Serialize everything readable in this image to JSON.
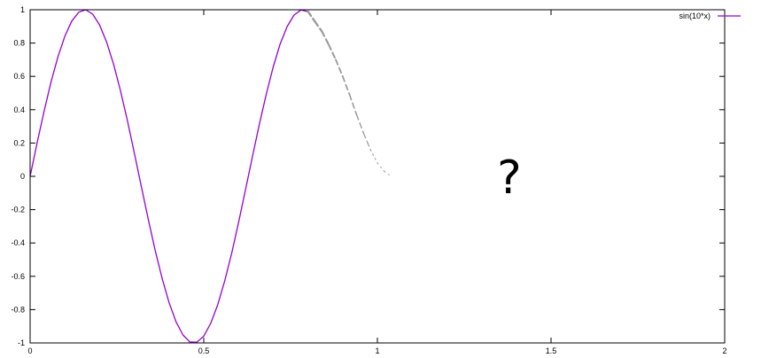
{
  "chart_data": {
    "type": "line",
    "title": "",
    "xlabel": "",
    "ylabel": "",
    "xlim": [
      0,
      2
    ],
    "ylim": [
      -1,
      1
    ],
    "x_ticks": [
      {
        "value": 0,
        "label": "0"
      },
      {
        "value": 0.5,
        "label": "0.5"
      },
      {
        "value": 1,
        "label": "1"
      },
      {
        "value": 1.5,
        "label": "1.5"
      },
      {
        "value": 2,
        "label": "2"
      }
    ],
    "y_ticks": [
      {
        "value": 1,
        "label": "1"
      },
      {
        "value": 0.8,
        "label": "0.8"
      },
      {
        "value": 0.6,
        "label": "0.6"
      },
      {
        "value": 0.4,
        "label": "0.4"
      },
      {
        "value": 0.2,
        "label": "0.2"
      },
      {
        "value": 0,
        "label": "0"
      },
      {
        "value": -0.2,
        "label": "-0.2"
      },
      {
        "value": -0.4,
        "label": "-0.4"
      },
      {
        "value": -0.6,
        "label": "-0.6"
      },
      {
        "value": -0.8,
        "label": "-0.8"
      },
      {
        "value": -1,
        "label": "-1"
      }
    ],
    "grid": false,
    "legend_position": "top-right",
    "series": [
      {
        "name": "sin(10*x)",
        "color": "#9400d3",
        "style": "solid",
        "x": [
          0,
          0.02,
          0.04,
          0.06,
          0.08,
          0.1,
          0.12,
          0.14,
          0.16,
          0.18,
          0.2,
          0.22,
          0.24,
          0.26,
          0.28,
          0.3,
          0.32,
          0.34,
          0.36,
          0.38,
          0.4,
          0.42,
          0.44,
          0.46,
          0.48,
          0.5,
          0.52,
          0.54,
          0.56,
          0.58,
          0.6,
          0.62,
          0.64,
          0.66,
          0.68,
          0.7,
          0.72,
          0.74,
          0.76,
          0.78,
          0.8
        ],
        "y": [
          0,
          0.199,
          0.389,
          0.565,
          0.717,
          0.841,
          0.932,
          0.985,
          1.0,
          0.974,
          0.909,
          0.808,
          0.675,
          0.516,
          0.335,
          0.141,
          -0.058,
          -0.256,
          -0.443,
          -0.612,
          -0.757,
          -0.872,
          -0.952,
          -0.994,
          -0.996,
          -0.959,
          -0.883,
          -0.772,
          -0.631,
          -0.465,
          -0.279,
          -0.083,
          0.117,
          0.311,
          0.494,
          0.657,
          0.794,
          0.899,
          0.968,
          0.999,
          0.989
        ]
      },
      {
        "name": "",
        "color": "#999999",
        "style": "dashed-fading",
        "x": [
          0.8,
          0.82,
          0.84,
          0.86,
          0.88,
          0.9,
          0.92,
          0.94,
          0.96,
          0.98,
          1.0,
          1.02,
          1.04
        ],
        "y": [
          0.99,
          0.93,
          0.87,
          0.79,
          0.7,
          0.6,
          0.49,
          0.37,
          0.26,
          0.16,
          0.08,
          0.03,
          0.0
        ]
      }
    ],
    "annotations": [
      {
        "text": "?",
        "x": 1.38,
        "y": -0.1
      }
    ]
  }
}
